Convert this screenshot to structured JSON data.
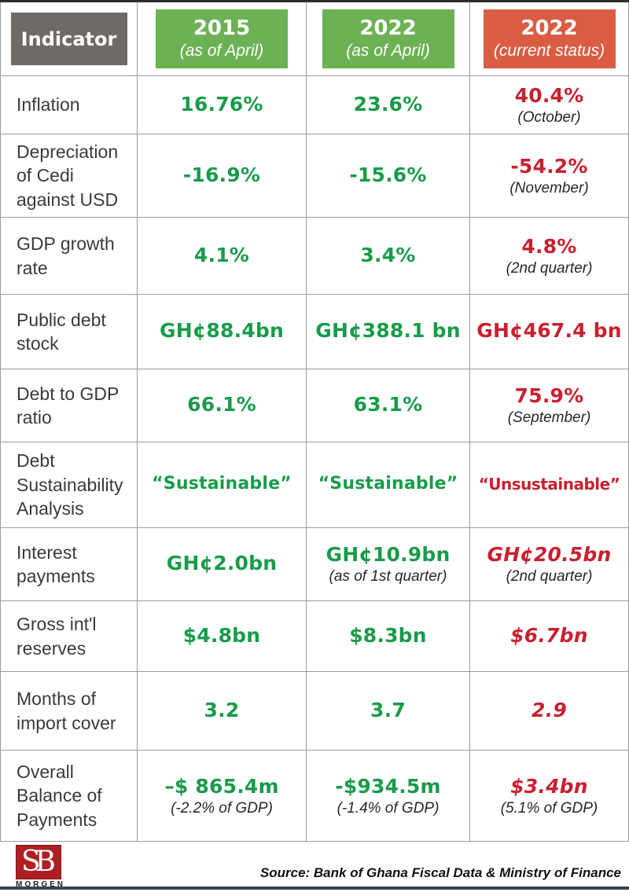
{
  "colors": {
    "header-gray": "#6d6a67",
    "header-green": "#6cb154",
    "header-red": "#d95c43",
    "value-green": "#189b4a",
    "value-red": "#c92030",
    "label-dark": "#3a3a3a",
    "grid-line": "#9b9b9b",
    "logo-red": "#ae1f24",
    "bottom-bar": "#39444d"
  },
  "header": {
    "columns": [
      {
        "label": "Indicator",
        "sub": ""
      },
      {
        "label": "2015",
        "sub": "(as of April)"
      },
      {
        "label": "2022",
        "sub": "(as of April)"
      },
      {
        "label": "2022",
        "sub": "(current status)"
      }
    ]
  },
  "rows": [
    {
      "indicator": "Inflation",
      "v2015": {
        "value": "16.76%"
      },
      "v2022a": {
        "value": "23.6%"
      },
      "v2022c": {
        "value": "40.4%",
        "note": "(October)"
      }
    },
    {
      "indicator": "Depreciation of Cedi against USD",
      "v2015": {
        "value": "-16.9%"
      },
      "v2022a": {
        "value": "-15.6%"
      },
      "v2022c": {
        "value": "-54.2%",
        "note": "(November)"
      }
    },
    {
      "indicator": "GDP growth rate",
      "v2015": {
        "value": "4.1%"
      },
      "v2022a": {
        "value": "3.4%"
      },
      "v2022c": {
        "value": "4.8%",
        "note": "(2nd quarter)"
      }
    },
    {
      "indicator": "Public debt stock",
      "v2015": {
        "value": "GH¢88.4bn"
      },
      "v2022a": {
        "value": "GH¢388.1 bn"
      },
      "v2022c": {
        "value": "GH¢467.4 bn"
      }
    },
    {
      "indicator": "Debt to GDP ratio",
      "v2015": {
        "value": "66.1%"
      },
      "v2022a": {
        "value": "63.1%"
      },
      "v2022c": {
        "value": "75.9%",
        "note": "(September)"
      }
    },
    {
      "indicator": "Debt Sustainability Analysis",
      "v2015": {
        "value": "“Sustainable”"
      },
      "v2022a": {
        "value": "“Sustainable”"
      },
      "v2022c": {
        "value": "“Unsustainable”"
      }
    },
    {
      "indicator": "Interest payments",
      "v2015": {
        "value": "GH¢2.0bn"
      },
      "v2022a": {
        "value": "GH¢10.9bn",
        "note": "(as of 1st quarter)"
      },
      "v2022c": {
        "value": "GH¢20.5bn",
        "note": "(2nd quarter)"
      }
    },
    {
      "indicator": "Gross int'l reserves",
      "v2015": {
        "value": "$4.8bn"
      },
      "v2022a": {
        "value": "$8.3bn"
      },
      "v2022c": {
        "value": "$6.7bn"
      }
    },
    {
      "indicator": "Months of import cover",
      "v2015": {
        "value": "3.2"
      },
      "v2022a": {
        "value": "3.7"
      },
      "v2022c": {
        "value": "2.9"
      }
    },
    {
      "indicator": "Overall Balance of Payments",
      "v2015": {
        "value": "–$ 865.4m",
        "note": "(-2.2% of GDP)"
      },
      "v2022a": {
        "value": "-$934.5m",
        "note": "(-1.4% of GDP)"
      },
      "v2022c": {
        "value": "$3.4bn",
        "note": "(5.1% of GDP)"
      }
    }
  ],
  "footer": {
    "logo_sb": "SB",
    "logo_morgen": "MORGEN",
    "source": "Source: Bank of Ghana Fiscal Data & Ministry of Finance"
  },
  "chart_data": {
    "type": "table",
    "columns": [
      "Indicator",
      "2015 (as of April)",
      "2022 (as of April)",
      "2022 (current status)"
    ],
    "rows": [
      [
        "Inflation",
        "16.76%",
        "23.6%",
        "40.4% (October)"
      ],
      [
        "Depreciation of Cedi against USD",
        "-16.9%",
        "-15.6%",
        "-54.2% (November)"
      ],
      [
        "GDP growth rate",
        "4.1%",
        "3.4%",
        "4.8% (2nd quarter)"
      ],
      [
        "Public debt stock",
        "GH¢88.4bn",
        "GH¢388.1 bn",
        "GH¢467.4 bn"
      ],
      [
        "Debt to GDP ratio",
        "66.1%",
        "63.1%",
        "75.9% (September)"
      ],
      [
        "Debt Sustainability Analysis",
        "“Sustainable”",
        "“Sustainable”",
        "“Unsustainable”"
      ],
      [
        "Interest payments",
        "GH¢2.0bn",
        "GH¢10.9bn (as of 1st quarter)",
        "GH¢20.5bn (2nd quarter)"
      ],
      [
        "Gross int'l reserves",
        "$4.8bn",
        "$8.3bn",
        "$6.7bn"
      ],
      [
        "Months of import cover",
        "3.2",
        "3.7",
        "2.9"
      ],
      [
        "Overall Balance of Payments",
        "–$ 865.4m (-2.2% of GDP)",
        "-$934.5m (-1.4% of GDP)",
        "$3.4bn (5.1% of GDP)"
      ]
    ],
    "legend_semantics": {
      "green": "value at the time / favourable",
      "red": "current deteriorated value"
    },
    "source": "Source: Bank of Ghana Fiscal Data & Ministry of Finance"
  }
}
